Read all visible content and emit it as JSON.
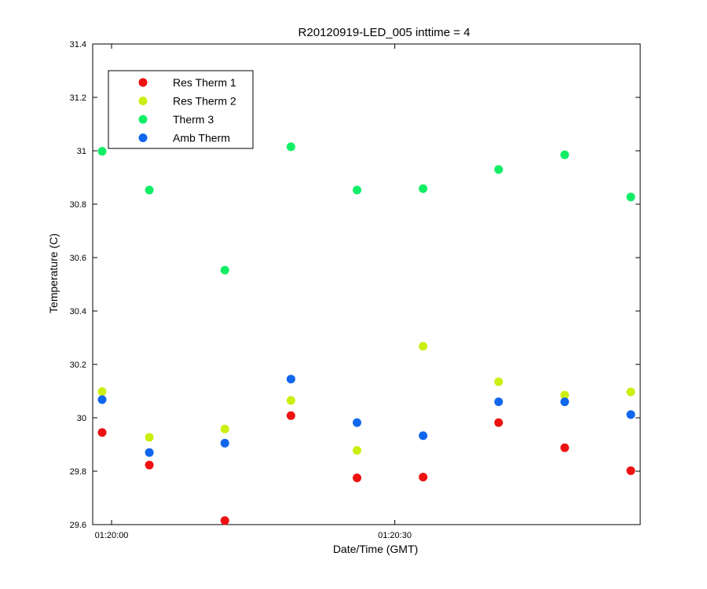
{
  "chart_data": {
    "type": "scatter",
    "title": "R20120919-LED_005 inttime = 4",
    "xlabel": "Date/Time (GMT)",
    "ylabel": "Temperature (C)",
    "xlim": [
      "01:19:58",
      "01:20:56"
    ],
    "ylim": [
      29.6,
      31.4
    ],
    "x_ticks": [
      {
        "value": "01:20:00",
        "label": "01:20:00"
      },
      {
        "value": "01:20:30",
        "label": "01:20:30"
      }
    ],
    "y_ticks": [
      29.6,
      29.8,
      30,
      30.2,
      30.4,
      30.6,
      30.8,
      31,
      31.2,
      31.4
    ],
    "y_tick_labels": [
      "29.6",
      "29.8",
      "30",
      "30.2",
      "30.4",
      "30.6",
      "30.8",
      "31",
      "31.2",
      "31.4"
    ],
    "grid": false,
    "legend_position": "top-left",
    "x": [
      "01:19:59",
      "01:20:04",
      "01:20:12",
      "01:20:19",
      "01:20:26",
      "01:20:33",
      "01:20:41",
      "01:20:48",
      "01:20:55"
    ],
    "series": [
      {
        "name": "Res Therm 1",
        "color": "#ee1111",
        "values": [
          29.945,
          29.823,
          29.615,
          30.008,
          29.775,
          29.778,
          29.982,
          29.888,
          29.802
        ]
      },
      {
        "name": "Res Therm 2",
        "color": "#ccee11",
        "values": [
          30.098,
          29.927,
          29.958,
          30.065,
          29.878,
          30.268,
          30.135,
          30.085,
          30.097
        ]
      },
      {
        "name": "Therm 3",
        "color": "#11ee66",
        "values": [
          30.998,
          30.853,
          30.553,
          31.015,
          30.853,
          30.858,
          30.93,
          30.985,
          30.827
        ]
      },
      {
        "name": "Amb Therm",
        "color": "#1166ee",
        "values": [
          30.068,
          29.87,
          29.905,
          30.145,
          29.982,
          29.933,
          30.06,
          30.06,
          30.012
        ]
      }
    ]
  }
}
